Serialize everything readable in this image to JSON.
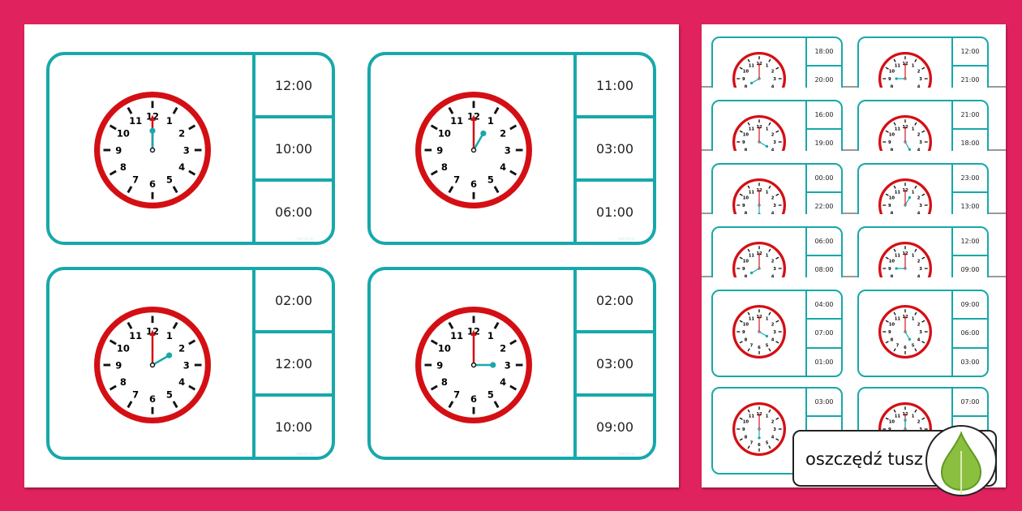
{
  "colors": {
    "background": "#e0235e",
    "card_border": "#17a8ab",
    "clock_rim": "#d40f14",
    "minute_hand": "#d40f14",
    "hour_hand": "#17a8ab"
  },
  "main_cards": [
    {
      "clock_hour": 12,
      "options": [
        "12:00",
        "10:00",
        "06:00"
      ],
      "watermark": "twinkl.pl"
    },
    {
      "clock_hour": 1,
      "options": [
        "11:00",
        "03:00",
        "01:00"
      ],
      "watermark": "twinkl.pl"
    },
    {
      "clock_hour": 2,
      "options": [
        "02:00",
        "12:00",
        "10:00"
      ],
      "watermark": "twinkl.pl"
    },
    {
      "clock_hour": 3,
      "options": [
        "02:00",
        "03:00",
        "09:00"
      ],
      "watermark": "twinkl.pl"
    }
  ],
  "thumbnails": [
    {
      "clock_hour": 8,
      "options": [
        "18:00",
        "20:00"
      ]
    },
    {
      "clock_hour": 9,
      "options": [
        "12:00",
        "21:00"
      ]
    },
    {
      "clock_hour": 4,
      "options": [
        "16:00",
        "19:00"
      ]
    },
    {
      "clock_hour": 5,
      "options": [
        "21:00",
        "18:00"
      ]
    },
    {
      "clock_hour": 6,
      "options": [
        "00:00",
        "22:00"
      ]
    },
    {
      "clock_hour": 1,
      "options": [
        "23:00",
        "13:00"
      ]
    },
    {
      "clock_hour": 8,
      "options": [
        "06:00",
        "08:00"
      ]
    },
    {
      "clock_hour": 9,
      "options": [
        "12:00",
        "09:00"
      ]
    },
    {
      "clock_hour": 4,
      "options": [
        "04:00",
        "07:00",
        "01:00"
      ]
    },
    {
      "clock_hour": 5,
      "options": [
        "09:00",
        "06:00",
        "03:00"
      ]
    },
    {
      "clock_hour": 6,
      "options": [
        "03:00"
      ]
    },
    {
      "clock_hour": 12,
      "options": [
        "07:00"
      ]
    }
  ],
  "badge": {
    "label": "oszczędź tusz",
    "icon": "leaf-icon"
  }
}
